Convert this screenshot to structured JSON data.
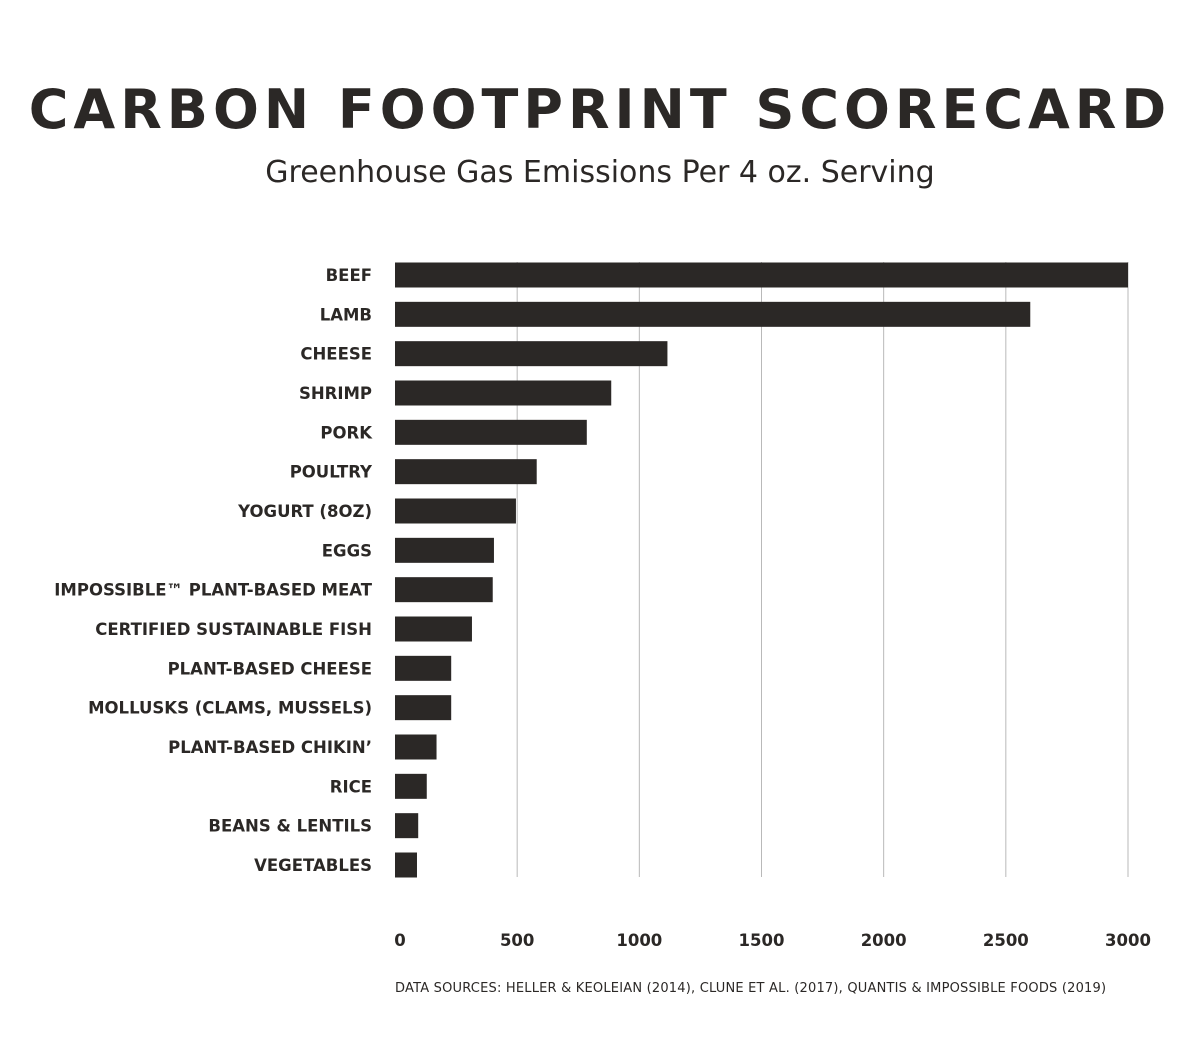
{
  "header": {
    "title": "CARBON FOOTPRINT SCORECARD",
    "subtitle": "Greenhouse Gas Emissions Per 4 oz. Serving"
  },
  "footer": {
    "source": "DATA SOURCES: HELLER & KEOLEIAN (2014), CLUNE ET AL. (2017), QUANTIS & IMPOSSIBLE FOODS (2019)"
  },
  "colors": {
    "bar": "#2b2826",
    "grid": "#b9b9b9",
    "text": "#2b2826"
  },
  "chart_data": {
    "type": "bar",
    "orientation": "horizontal",
    "title": "CARBON FOOTPRINT SCORECARD",
    "subtitle": "Greenhouse Gas Emissions Per 4 oz. Serving",
    "xlabel": "",
    "ylabel": "",
    "xlim": [
      0,
      3000
    ],
    "xticks": [
      0,
      500,
      1000,
      1500,
      2000,
      2500,
      3000
    ],
    "grid": "vertical",
    "legend": "none",
    "categories": [
      "BEEF",
      "LAMB",
      "CHEESE",
      "SHRIMP",
      "PORK",
      "POULTRY",
      "YOGURT (8OZ)",
      "EGGS",
      "IMPOSSIBLE™ PLANT-BASED MEAT",
      "CERTIFIED SUSTAINABLE FISH",
      "PLANT-BASED CHEESE",
      "MOLLUSKS (CLAMS, MUSSELS)",
      "PLANT-BASED CHIKIN’",
      "RICE",
      "BEANS & LENTILS",
      "VEGETABLES"
    ],
    "values": [
      3000,
      2600,
      1115,
      885,
      785,
      580,
      495,
      405,
      400,
      315,
      230,
      230,
      170,
      130,
      95,
      90
    ]
  }
}
